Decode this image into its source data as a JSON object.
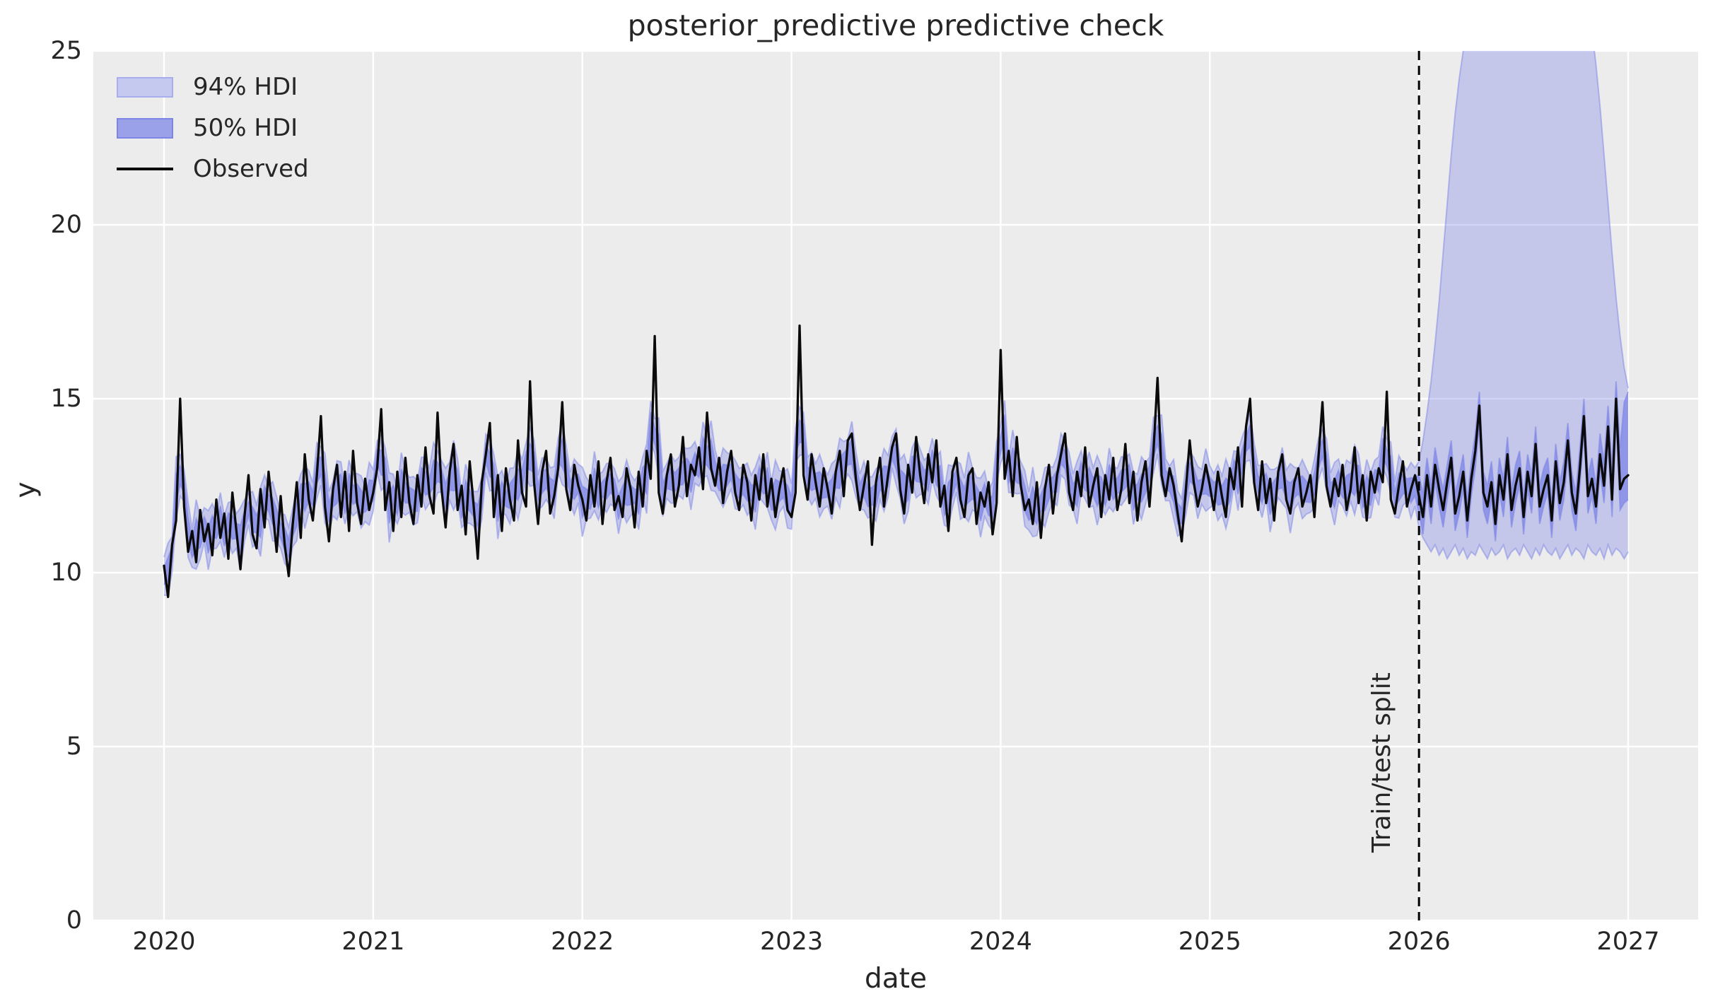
{
  "title": "posterior_predictive predictive check",
  "xlabel": "date",
  "ylabel": "y",
  "legend": {
    "items": [
      {
        "label": "94% HDI",
        "swatch": "hdi94-band-swatch"
      },
      {
        "label": "50% HDI",
        "swatch": "hdi50-band-swatch"
      },
      {
        "label": "Observed",
        "swatch": "observed-line-swatch"
      }
    ]
  },
  "colors": {
    "figure_background": "#ffffff",
    "plot_background": "#ececec",
    "grid": "#ffffff",
    "band": "#7c84e6",
    "hdi94_fill_opacity": 0.35,
    "hdi50_fill_opacity": 0.72,
    "hdi94_blend": "#c6c9ef",
    "hdi50_blend": "#9ba1e8",
    "hdi94_edge": "#a8adee",
    "hdi50_edge": "#7d85e6",
    "observed": "#0a0a0a",
    "split_line": "#000000",
    "text": "#262626"
  },
  "chart_data": {
    "type": "line",
    "title": "posterior_predictive predictive check",
    "xlabel": "date",
    "ylabel": "y",
    "xlim": [
      2019.66,
      2027.33
    ],
    "ylim": [
      0,
      25
    ],
    "xticks": [
      2020,
      2021,
      2022,
      2023,
      2024,
      2025,
      2026,
      2027
    ],
    "yticks": [
      0,
      5,
      10,
      15,
      20,
      25
    ],
    "grid": true,
    "legend_position": "upper left",
    "x_start": 2020,
    "points_per_year": 52,
    "train_end_x": 2026,
    "smooth_window": 3,
    "vline": {
      "x": 2026,
      "label": "Train/test split",
      "style": "dashed"
    },
    "observed": [
      10.2,
      9.3,
      10.8,
      11.5,
      15.0,
      11.9,
      10.6,
      11.2,
      10.3,
      11.8,
      10.9,
      11.4,
      10.5,
      12.1,
      11.0,
      11.7,
      10.4,
      12.3,
      11.2,
      10.1,
      11.6,
      12.8,
      11.1,
      10.7,
      12.4,
      11.3,
      12.9,
      11.8,
      10.6,
      12.2,
      10.8,
      9.9,
      11.4,
      12.6,
      11.0,
      13.4,
      12.1,
      11.5,
      12.8,
      14.5,
      11.9,
      10.9,
      12.4,
      13.1,
      11.6,
      12.9,
      11.2,
      13.5,
      12.0,
      11.4,
      12.7,
      11.8,
      12.3,
      13.0,
      14.7,
      11.8,
      12.6,
      11.2,
      12.9,
      11.6,
      13.3,
      12.0,
      11.4,
      12.8,
      11.9,
      13.6,
      12.2,
      11.7,
      14.6,
      12.4,
      11.3,
      12.9,
      13.7,
      11.8,
      12.5,
      11.1,
      13.2,
      11.9,
      10.4,
      12.6,
      13.4,
      14.3,
      11.6,
      12.8,
      11.2,
      13.0,
      12.1,
      11.5,
      13.8,
      12.3,
      11.9,
      15.5,
      12.6,
      11.4,
      12.9,
      13.5,
      11.7,
      12.2,
      13.0,
      14.9,
      12.4,
      11.8,
      13.1,
      12.5,
      12.1,
      11.5,
      12.8,
      11.9,
      13.2,
      11.4,
      12.6,
      13.3,
      11.8,
      12.2,
      11.6,
      13.0,
      12.4,
      11.3,
      12.9,
      11.9,
      13.5,
      12.7,
      16.8,
      12.3,
      11.7,
      12.8,
      13.4,
      11.9,
      12.5,
      13.9,
      12.2,
      13.1,
      12.8,
      13.6,
      12.4,
      14.6,
      13.0,
      12.5,
      13.3,
      12.0,
      12.9,
      13.5,
      12.3,
      11.8,
      13.1,
      12.6,
      11.5,
      12.8,
      12.1,
      13.4,
      11.9,
      12.7,
      11.6,
      12.4,
      13.0,
      11.8,
      11.6,
      12.3,
      17.1,
      12.8,
      12.1,
      13.4,
      12.6,
      11.9,
      13.0,
      12.4,
      11.7,
      12.9,
      13.5,
      12.2,
      13.8,
      14.0,
      12.7,
      11.8,
      12.5,
      13.2,
      10.8,
      12.6,
      13.3,
      11.9,
      12.8,
      13.6,
      14.0,
      12.4,
      11.7,
      13.1,
      12.3,
      13.9,
      12.8,
      12.0,
      13.4,
      12.6,
      13.8,
      11.9,
      12.5,
      11.2,
      12.9,
      13.3,
      12.1,
      11.6,
      12.8,
      13.0,
      11.4,
      12.3,
      11.9,
      12.6,
      11.1,
      12.0,
      16.4,
      12.7,
      13.5,
      12.2,
      13.9,
      12.5,
      11.8,
      12.1,
      11.4,
      12.6,
      11.0,
      12.4,
      13.1,
      11.7,
      12.8,
      13.4,
      14.0,
      12.3,
      11.8,
      12.9,
      12.2,
      13.6,
      11.9,
      12.5,
      13.0,
      11.6,
      12.8,
      12.1,
      13.3,
      11.8,
      12.4,
      13.7,
      12.0,
      12.9,
      11.5,
      12.6,
      13.2,
      11.9,
      13.5,
      15.6,
      12.8,
      12.2,
      13.0,
      12.5,
      11.7,
      10.9,
      12.3,
      13.8,
      12.6,
      11.9,
      12.4,
      13.1,
      12.5,
      11.8,
      12.9,
      12.2,
      11.6,
      13.0,
      12.4,
      13.6,
      11.9,
      14.2,
      15.0,
      12.6,
      11.8,
      13.2,
      12.0,
      12.7,
      11.5,
      12.9,
      13.4,
      12.1,
      11.7,
      12.6,
      13.0,
      11.9,
      12.3,
      12.8,
      11.6,
      13.3,
      14.9,
      12.5,
      11.9,
      12.7,
      12.2,
      13.1,
      11.8,
      12.4,
      13.6,
      12.0,
      12.8,
      11.5,
      12.9,
      12.3,
      13.0,
      12.6,
      15.2,
      12.1,
      11.7,
      12.5,
      13.2,
      11.9,
      12.4,
      12.8,
      12.2,
      11.6,
      12.8,
      11.9,
      13.1,
      12.4,
      11.8,
      12.6,
      13.3,
      11.7,
      12.2,
      12.9,
      11.5,
      12.7,
      13.5,
      14.8,
      12.3,
      11.9,
      12.6,
      11.4,
      12.8,
      12.1,
      13.4,
      11.8,
      12.5,
      13.0,
      11.6,
      12.9,
      12.2,
      13.7,
      11.9,
      12.4,
      12.8,
      11.5,
      13.2,
      12.0,
      12.6,
      13.8,
      12.3,
      11.7,
      13.0,
      14.5,
      12.2,
      12.7,
      11.9,
      13.4,
      12.5,
      14.2,
      12.1,
      15.0,
      12.4,
      12.7,
      12.8
    ],
    "hdi94": {
      "train_halfwidth_pattern": [
        0.55,
        0.75,
        0.5,
        0.9,
        0.6,
        0.45,
        0.8,
        0.55,
        1.0,
        0.6,
        0.5,
        0.85,
        0.65,
        0.5,
        0.7,
        0.6
      ],
      "test_upper": [
        13.2,
        13.8,
        14.6,
        15.5,
        16.6,
        17.8,
        19.2,
        20.6,
        22.0,
        23.2,
        24.2,
        25.0,
        25.8,
        27.0,
        28.5,
        30.0,
        32.0,
        34.0,
        36.0,
        38.0,
        40.0,
        41.5,
        43.0,
        44.0,
        45.0,
        45.5,
        46.0,
        46.0,
        45.5,
        45.0,
        44.0,
        43.0,
        41.5,
        40.0,
        38.5,
        37.0,
        35.5,
        34.0,
        32.5,
        31.0,
        29.5,
        28.0,
        26.8,
        25.6,
        24.6,
        23.4,
        22.0,
        20.6,
        19.2,
        17.9,
        16.8,
        15.9,
        15.3
      ],
      "test_lower": [
        11.3,
        11.0,
        10.8,
        10.6,
        10.8,
        10.5,
        10.7,
        10.4,
        10.6,
        10.8,
        10.5,
        10.7,
        10.4,
        10.6,
        10.5,
        10.8,
        10.6,
        10.4,
        10.7,
        10.5,
        10.6,
        10.8,
        10.4,
        10.6,
        10.7,
        10.5,
        10.8,
        10.6,
        10.4,
        10.7,
        10.5,
        10.8,
        10.6,
        10.5,
        10.7,
        10.4,
        10.6,
        10.8,
        10.5,
        10.7,
        10.6,
        10.4,
        10.8,
        10.6,
        10.5,
        10.7,
        10.4,
        10.8,
        10.5,
        10.7,
        10.6,
        10.4,
        10.6
      ]
    },
    "hdi50": {
      "train_halfwidth_pattern": [
        0.25,
        0.34,
        0.22,
        0.4,
        0.28,
        0.2,
        0.36,
        0.26,
        0.45,
        0.28,
        0.24,
        0.38,
        0.3,
        0.22,
        0.32,
        0.27
      ],
      "test_upper": [
        12.8,
        12.3,
        13.3,
        12.5,
        13.6,
        12.9,
        12.4,
        13.1,
        13.8,
        12.3,
        12.8,
        13.4,
        12.1,
        13.2,
        14.0,
        15.2,
        12.9,
        12.5,
        13.2,
        12.0,
        13.3,
        12.7,
        13.9,
        12.4,
        13.1,
        13.5,
        12.2,
        13.4,
        12.8,
        14.2,
        12.5,
        13.0,
        13.3,
        12.1,
        13.7,
        12.6,
        13.2,
        14.3,
        12.9,
        12.3,
        13.6,
        15.0,
        12.8,
        13.3,
        12.5,
        14.0,
        13.2,
        14.8,
        13.0,
        15.5,
        13.6,
        14.9,
        15.2
      ],
      "test_lower": [
        11.7,
        11.1,
        12.3,
        11.4,
        12.6,
        11.9,
        11.3,
        12.1,
        12.8,
        11.2,
        11.7,
        12.4,
        11.0,
        12.2,
        13.0,
        14.2,
        11.8,
        11.4,
        12.1,
        10.9,
        12.3,
        11.6,
        12.9,
        11.3,
        12.0,
        12.5,
        11.1,
        12.4,
        11.7,
        13.2,
        11.4,
        11.9,
        12.3,
        11.0,
        12.7,
        11.5,
        12.1,
        13.3,
        11.8,
        11.2,
        12.5,
        14.0,
        11.7,
        12.2,
        11.4,
        12.9,
        12.0,
        13.7,
        11.6,
        14.4,
        11.8,
        12.0,
        12.1
      ]
    }
  }
}
